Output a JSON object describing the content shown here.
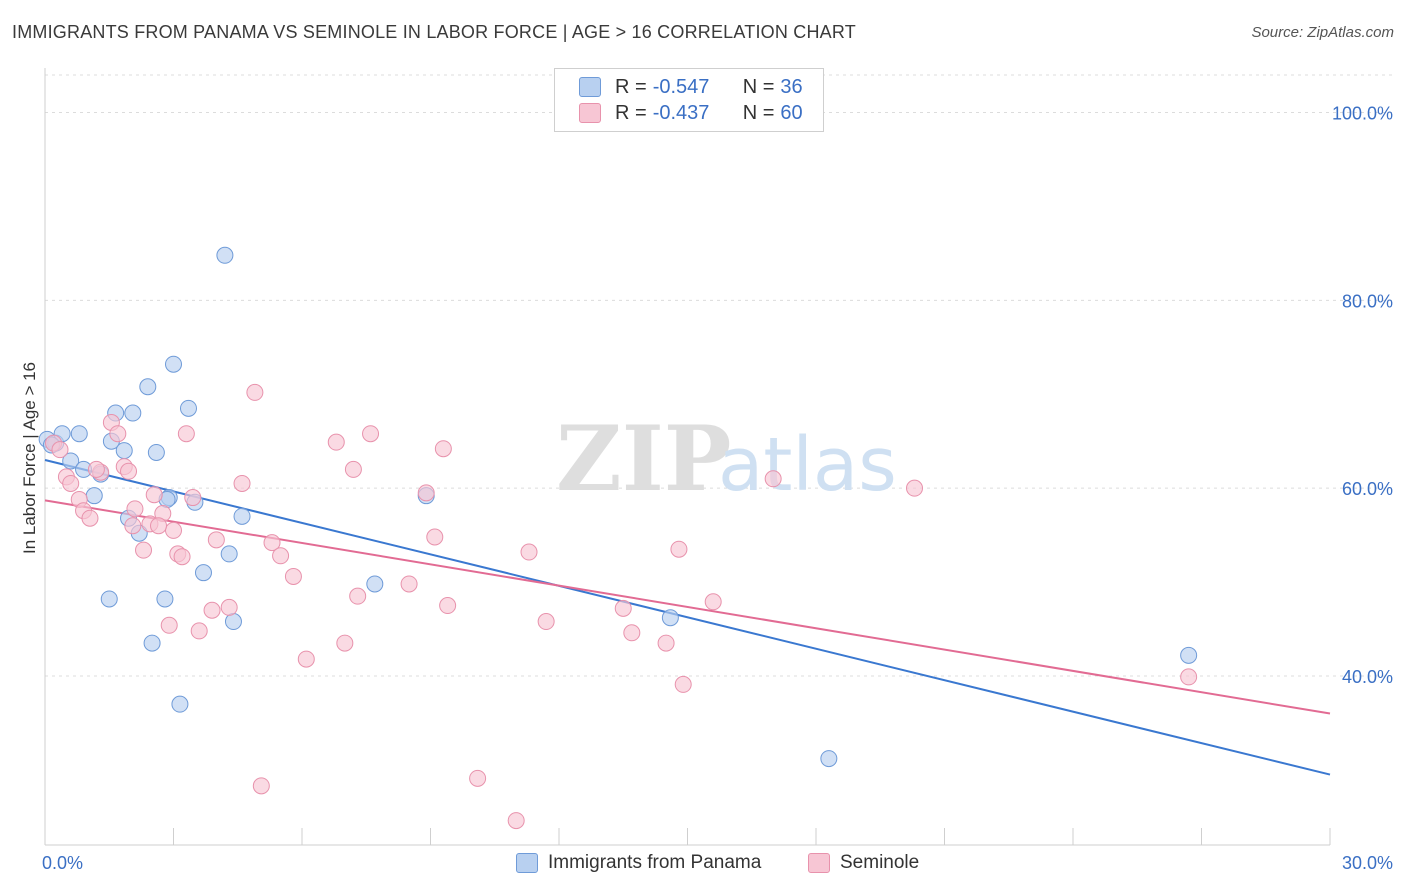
{
  "title": "IMMIGRANTS FROM PANAMA VS SEMINOLE IN LABOR FORCE | AGE > 16 CORRELATION CHART",
  "source": "Source: ZipAtlas.com",
  "legend": {
    "rows": [
      {
        "r_label": "R = ",
        "r_value": "-0.547",
        "n_label": "N = ",
        "n_value": "36"
      },
      {
        "r_label": "R = ",
        "r_value": "-0.437",
        "n_label": "N = ",
        "n_value": "60"
      }
    ]
  },
  "colors": {
    "blue_fill": "#b8d0f0",
    "blue_stroke": "#6f9bd8",
    "blue_line": "#3a78d0",
    "pink_fill": "#f7c6d4",
    "pink_stroke": "#e892ac",
    "pink_line": "#e26b93",
    "tick_label": "#3a6fc4"
  },
  "watermark": {
    "part1": "ZIP",
    "part2": "atlas"
  },
  "chart_data": {
    "type": "scatter",
    "xlabel": "",
    "ylabel": "In Labor Force | Age > 16",
    "xlim": [
      0,
      30
    ],
    "ylim": [
      22,
      104
    ],
    "x_tick_labels": [
      "0.0%",
      "30.0%"
    ],
    "y_ticks": [
      40,
      60,
      80,
      100
    ],
    "y_tick_labels": [
      "40.0%",
      "60.0%",
      "80.0%",
      "100.0%"
    ],
    "grid": true,
    "legend_position": "bottom",
    "series": [
      {
        "name": "Immigrants from Panama",
        "points": [
          [
            0.05,
            65.2
          ],
          [
            0.25,
            64.8
          ],
          [
            0.4,
            65.8
          ],
          [
            0.6,
            62.9
          ],
          [
            0.8,
            65.8
          ],
          [
            0.9,
            62.0
          ],
          [
            1.15,
            59.2
          ],
          [
            1.3,
            61.5
          ],
          [
            1.5,
            48.2
          ],
          [
            1.55,
            65.0
          ],
          [
            1.65,
            68.0
          ],
          [
            1.85,
            64.0
          ],
          [
            1.95,
            56.8
          ],
          [
            2.05,
            68.0
          ],
          [
            2.2,
            55.2
          ],
          [
            2.4,
            70.8
          ],
          [
            2.5,
            43.5
          ],
          [
            2.6,
            63.8
          ],
          [
            2.8,
            48.2
          ],
          [
            2.9,
            59.0
          ],
          [
            3.0,
            73.2
          ],
          [
            3.15,
            37.0
          ],
          [
            3.35,
            68.5
          ],
          [
            3.5,
            58.5
          ],
          [
            3.7,
            51.0
          ],
          [
            4.2,
            84.8
          ],
          [
            4.3,
            53.0
          ],
          [
            4.4,
            45.8
          ],
          [
            4.6,
            57.0
          ],
          [
            7.7,
            49.8
          ],
          [
            8.9,
            59.2
          ],
          [
            14.6,
            46.2
          ],
          [
            18.3,
            31.2
          ],
          [
            26.7,
            42.2
          ],
          [
            0.15,
            64.6
          ],
          [
            2.85,
            58.8
          ]
        ]
      },
      {
        "name": "Seminole",
        "points": [
          [
            0.2,
            64.8
          ],
          [
            0.5,
            61.2
          ],
          [
            0.6,
            60.5
          ],
          [
            0.8,
            58.8
          ],
          [
            0.9,
            57.6
          ],
          [
            1.05,
            56.8
          ],
          [
            1.3,
            61.7
          ],
          [
            1.55,
            67.0
          ],
          [
            1.7,
            65.8
          ],
          [
            1.85,
            62.3
          ],
          [
            1.95,
            61.8
          ],
          [
            2.05,
            56.0
          ],
          [
            2.1,
            57.8
          ],
          [
            2.3,
            53.4
          ],
          [
            2.45,
            56.2
          ],
          [
            2.55,
            59.3
          ],
          [
            2.75,
            57.3
          ],
          [
            2.9,
            45.4
          ],
          [
            3.0,
            55.5
          ],
          [
            3.1,
            53.0
          ],
          [
            3.2,
            52.7
          ],
          [
            3.3,
            65.8
          ],
          [
            3.6,
            44.8
          ],
          [
            3.9,
            47.0
          ],
          [
            4.0,
            54.5
          ],
          [
            4.3,
            47.3
          ],
          [
            4.6,
            60.5
          ],
          [
            4.9,
            70.2
          ],
          [
            5.05,
            28.3
          ],
          [
            5.3,
            54.2
          ],
          [
            5.5,
            52.8
          ],
          [
            5.8,
            50.6
          ],
          [
            6.1,
            41.8
          ],
          [
            6.8,
            64.9
          ],
          [
            7.0,
            43.5
          ],
          [
            7.2,
            62.0
          ],
          [
            7.3,
            48.5
          ],
          [
            7.6,
            65.8
          ],
          [
            8.5,
            49.8
          ],
          [
            8.9,
            59.5
          ],
          [
            9.1,
            54.8
          ],
          [
            9.3,
            64.2
          ],
          [
            9.4,
            47.5
          ],
          [
            10.1,
            29.1
          ],
          [
            11.0,
            24.6
          ],
          [
            11.3,
            53.2
          ],
          [
            11.7,
            45.8
          ],
          [
            13.5,
            47.2
          ],
          [
            13.7,
            44.6
          ],
          [
            14.5,
            43.5
          ],
          [
            14.8,
            53.5
          ],
          [
            14.9,
            39.1
          ],
          [
            15.6,
            47.9
          ],
          [
            17.0,
            61.0
          ],
          [
            20.3,
            60.0
          ],
          [
            26.7,
            39.9
          ],
          [
            1.2,
            62.0
          ],
          [
            2.65,
            56.0
          ],
          [
            0.35,
            64.1
          ],
          [
            3.45,
            59.0
          ]
        ]
      }
    ],
    "trendlines": [
      {
        "series": "Immigrants from Panama",
        "x": [
          0,
          30
        ],
        "y": [
          63.0,
          29.5
        ]
      },
      {
        "series": "Seminole",
        "x": [
          0,
          30
        ],
        "y": [
          58.7,
          36.0
        ]
      }
    ]
  },
  "bottom_legend": [
    "Immigrants from Panama",
    "Seminole"
  ]
}
